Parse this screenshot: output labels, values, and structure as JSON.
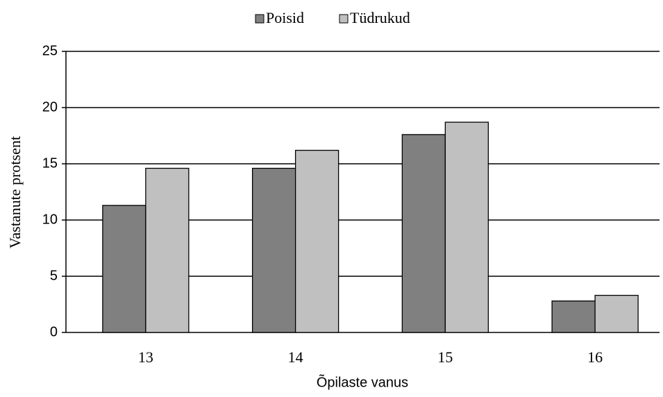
{
  "chart_data": {
    "type": "bar",
    "categories": [
      "13",
      "14",
      "15",
      "16"
    ],
    "series": [
      {
        "name": "Poisid",
        "color": "#808080",
        "values": [
          11.3,
          14.6,
          17.6,
          2.8
        ]
      },
      {
        "name": "Tüdrukud",
        "color": "#c0c0c0",
        "values": [
          14.6,
          16.2,
          18.7,
          3.3
        ]
      }
    ],
    "xlabel": "Õpilaste vanus",
    "ylabel": "Vastanute protsent",
    "ylim": [
      0,
      25
    ],
    "yticks": [
      0,
      5,
      10,
      15,
      20,
      25
    ],
    "grid": true,
    "legend": "top"
  }
}
